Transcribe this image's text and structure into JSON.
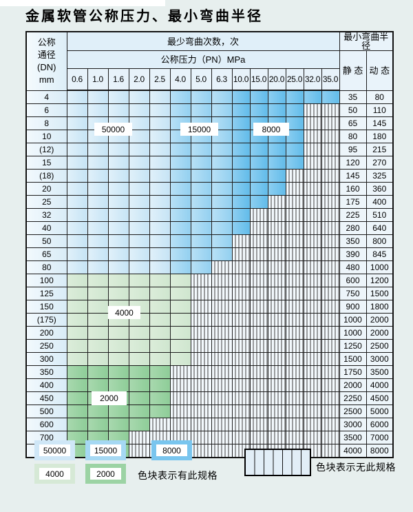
{
  "title": "金属软管公称压力、最小弯曲半径",
  "table": {
    "header": {
      "dn_lines": [
        "公称",
        "通径",
        "(DN)",
        "mm"
      ],
      "cycles_title": "最少弯曲次数，次",
      "pn_title": "公称压力（PN）MPa",
      "radius_title": "最小弯曲半径",
      "static_label": "静 态",
      "dynamic_label": "动 态"
    }
  },
  "chart_data": {
    "type": "table",
    "title": "金属软管公称压力、最小弯曲半径",
    "pressure_columns": [
      "0.6",
      "1.0",
      "1.6",
      "2.0",
      "2.5",
      "4.0",
      "5.0",
      "6.3",
      "10.0",
      "15.0",
      "20.0",
      "25.0",
      "32.0",
      "35.0"
    ],
    "blue_column_zones": [
      {
        "cycles": "50000",
        "col_start": "0.6",
        "col_end": "2.5"
      },
      {
        "cycles": "15000",
        "col_start": "4.0",
        "col_end": "6.3"
      },
      {
        "cycles": "8000",
        "col_start": "10.0",
        "col_end": "35.0"
      }
    ],
    "green_row_zones": [
      {
        "cycles": "4000",
        "dn_range": "100-300"
      },
      {
        "cycles": "2000",
        "dn_range": "350-800"
      }
    ],
    "rows": [
      {
        "dn": "4",
        "band": "blue",
        "colored_through": "35.0",
        "static": "35",
        "dynamic": "80"
      },
      {
        "dn": "6",
        "band": "blue",
        "colored_through": "25.0",
        "static": "50",
        "dynamic": "110"
      },
      {
        "dn": "8",
        "band": "blue",
        "colored_through": "25.0",
        "static": "65",
        "dynamic": "145"
      },
      {
        "dn": "10",
        "band": "blue",
        "colored_through": "25.0",
        "static": "80",
        "dynamic": "180"
      },
      {
        "dn": "(12)",
        "band": "blue",
        "colored_through": "25.0",
        "static": "95",
        "dynamic": "215"
      },
      {
        "dn": "15",
        "band": "blue",
        "colored_through": "25.0",
        "static": "120",
        "dynamic": "270"
      },
      {
        "dn": "(18)",
        "band": "blue",
        "colored_through": "20.0",
        "static": "145",
        "dynamic": "325"
      },
      {
        "dn": "20",
        "band": "blue",
        "colored_through": "20.0",
        "static": "160",
        "dynamic": "360"
      },
      {
        "dn": "25",
        "band": "blue",
        "colored_through": "15.0",
        "static": "175",
        "dynamic": "400"
      },
      {
        "dn": "32",
        "band": "blue",
        "colored_through": "10.0",
        "static": "225",
        "dynamic": "510"
      },
      {
        "dn": "40",
        "band": "blue",
        "colored_through": "10.0",
        "static": "280",
        "dynamic": "640"
      },
      {
        "dn": "50",
        "band": "blue",
        "colored_through": "6.3",
        "static": "350",
        "dynamic": "800"
      },
      {
        "dn": "65",
        "band": "blue",
        "colored_through": "6.3",
        "static": "390",
        "dynamic": "845"
      },
      {
        "dn": "80",
        "band": "blue",
        "colored_through": "5.0",
        "static": "480",
        "dynamic": "1000"
      },
      {
        "dn": "100",
        "band": "4000",
        "colored_through": "4.0",
        "static": "600",
        "dynamic": "1200"
      },
      {
        "dn": "125",
        "band": "4000",
        "colored_through": "4.0",
        "static": "750",
        "dynamic": "1500"
      },
      {
        "dn": "150",
        "band": "4000",
        "colored_through": "4.0",
        "static": "900",
        "dynamic": "1800"
      },
      {
        "dn": "(175)",
        "band": "4000",
        "colored_through": "4.0",
        "static": "1000",
        "dynamic": "2000"
      },
      {
        "dn": "200",
        "band": "4000",
        "colored_through": "4.0",
        "static": "1000",
        "dynamic": "2000"
      },
      {
        "dn": "250",
        "band": "4000",
        "colored_through": "4.0",
        "static": "1250",
        "dynamic": "2500"
      },
      {
        "dn": "300",
        "band": "4000",
        "colored_through": "4.0",
        "static": "1500",
        "dynamic": "3000"
      },
      {
        "dn": "350",
        "band": "2000",
        "colored_through": "2.5",
        "static": "1750",
        "dynamic": "3500"
      },
      {
        "dn": "400",
        "band": "2000",
        "colored_through": "2.5",
        "static": "2000",
        "dynamic": "4000"
      },
      {
        "dn": "450",
        "band": "2000",
        "colored_through": "2.5",
        "static": "2250",
        "dynamic": "4500"
      },
      {
        "dn": "500",
        "band": "2000",
        "colored_through": "2.5",
        "static": "2500",
        "dynamic": "5000"
      },
      {
        "dn": "600",
        "band": "2000",
        "colored_through": "2.0",
        "static": "3000",
        "dynamic": "6000"
      },
      {
        "dn": "700",
        "band": "2000",
        "colored_through": "1.6",
        "static": "3500",
        "dynamic": "7000"
      },
      {
        "dn": "800",
        "band": "2000",
        "colored_through": "1.6",
        "static": "4000",
        "dynamic": "8000"
      }
    ]
  },
  "overlay_labels": [
    {
      "text": "50000"
    },
    {
      "text": "15000"
    },
    {
      "text": "8000"
    },
    {
      "text": "4000"
    },
    {
      "text": "2000"
    }
  ],
  "legend": {
    "swatches": [
      {
        "value": "50000"
      },
      {
        "value": "15000"
      },
      {
        "value": "8000"
      },
      {
        "value": "4000"
      },
      {
        "value": "2000"
      }
    ],
    "has_spec_label": "色块表示有此规格",
    "no_spec_label": "色块表示无此规格"
  },
  "colors": {
    "cycles_50000": "#cfe7f7",
    "cycles_15000": "#a5d8f3",
    "cycles_8000": "#79c5ee",
    "cycles_4000": "#d6e9d6",
    "cycles_2000": "#9cd3a4",
    "hatch_background": "#f3f9fd",
    "grid_line": "#1b1b1b",
    "page_background": "#e7efee"
  }
}
